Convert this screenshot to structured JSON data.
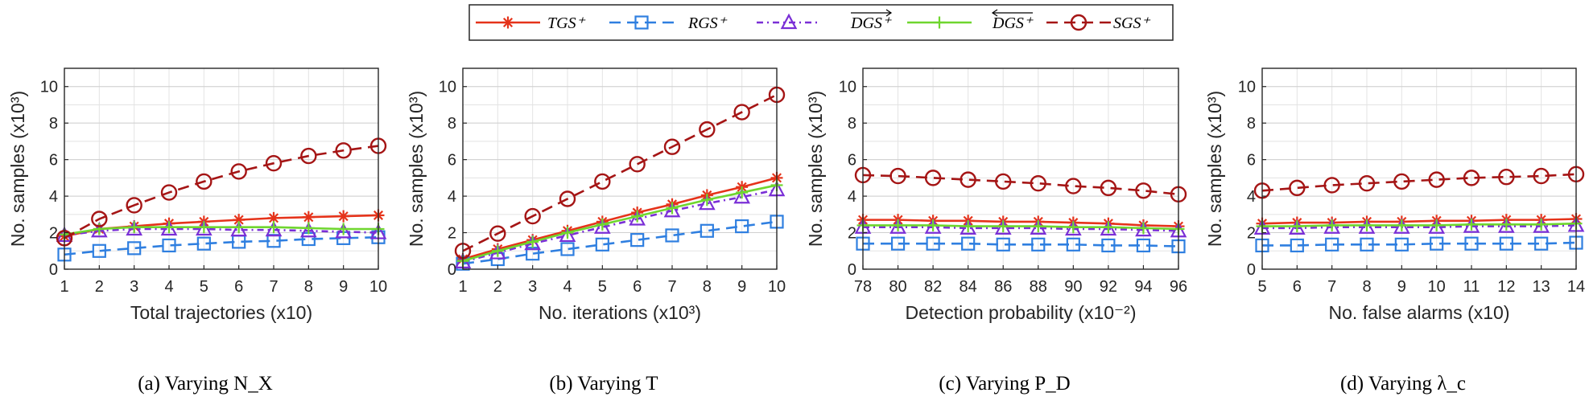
{
  "legend": [
    {
      "label": "TGS⁺",
      "color": "#e5331a",
      "dash": "",
      "marker": "star"
    },
    {
      "label": "RGS⁺",
      "color": "#2f7fe0",
      "dash": "14,8",
      "marker": "square"
    },
    {
      "label": "DGS⁺ (forward)",
      "color": "#7a2fd6",
      "dash": "8,5,2,5",
      "marker": "triangle"
    },
    {
      "label": "DGS⁺ (backward)",
      "color": "#6fd62f",
      "dash": "",
      "marker": "plus"
    },
    {
      "label": "SGS⁺",
      "color": "#a51515",
      "dash": "14,8",
      "marker": "circle"
    }
  ],
  "chart_data": [
    {
      "type": "line",
      "caption": "(a) Varying N_X",
      "xlabel": "Total trajectories (x10)",
      "ylabel": "No. samples (x10³)",
      "x": [
        1,
        2,
        3,
        4,
        5,
        6,
        7,
        8,
        9,
        10
      ],
      "xlim": [
        1,
        10
      ],
      "ylim": [
        0,
        11
      ],
      "yticks": [
        0,
        2,
        4,
        6,
        8,
        10
      ],
      "xticks": [
        "1",
        "2",
        "3",
        "4",
        "5",
        "6",
        "7",
        "8",
        "9",
        "10"
      ],
      "series": [
        {
          "name": "TGS⁺",
          "values": [
            1.8,
            2.2,
            2.35,
            2.5,
            2.6,
            2.7,
            2.8,
            2.85,
            2.9,
            2.95
          ]
        },
        {
          "name": "RGS⁺",
          "values": [
            0.8,
            1.0,
            1.15,
            1.3,
            1.4,
            1.5,
            1.55,
            1.65,
            1.7,
            1.75
          ]
        },
        {
          "name": "DGS⁺ (forward)",
          "values": [
            1.85,
            2.1,
            2.2,
            2.2,
            2.2,
            2.15,
            2.15,
            2.1,
            2.05,
            2.0
          ]
        },
        {
          "name": "DGS⁺ (backward)",
          "values": [
            1.9,
            2.2,
            2.3,
            2.3,
            2.3,
            2.3,
            2.3,
            2.25,
            2.2,
            2.2
          ]
        },
        {
          "name": "SGS⁺",
          "values": [
            1.7,
            2.75,
            3.5,
            4.2,
            4.8,
            5.35,
            5.8,
            6.2,
            6.5,
            6.75
          ]
        }
      ]
    },
    {
      "type": "line",
      "caption": "(b) Varying T",
      "xlabel": "No. iterations (x10³)",
      "ylabel": "No. samples (x10³)",
      "x": [
        1,
        2,
        3,
        4,
        5,
        6,
        7,
        8,
        9,
        10
      ],
      "xlim": [
        1,
        10
      ],
      "ylim": [
        0,
        11
      ],
      "yticks": [
        0,
        2,
        4,
        6,
        8,
        10
      ],
      "xticks": [
        "1",
        "2",
        "3",
        "4",
        "5",
        "6",
        "7",
        "8",
        "9",
        "10"
      ],
      "series": [
        {
          "name": "TGS⁺",
          "values": [
            0.55,
            1.1,
            1.6,
            2.1,
            2.6,
            3.1,
            3.55,
            4.05,
            4.5,
            5.0
          ]
        },
        {
          "name": "RGS⁺",
          "values": [
            0.3,
            0.55,
            0.85,
            1.1,
            1.35,
            1.6,
            1.85,
            2.1,
            2.35,
            2.6
          ]
        },
        {
          "name": "DGS⁺ (forward)",
          "values": [
            0.4,
            0.9,
            1.4,
            1.85,
            2.3,
            2.75,
            3.2,
            3.6,
            3.95,
            4.35
          ]
        },
        {
          "name": "DGS⁺ (backward)",
          "values": [
            0.45,
            1.0,
            1.5,
            2.0,
            2.45,
            2.9,
            3.35,
            3.8,
            4.2,
            4.6
          ]
        },
        {
          "name": "SGS⁺",
          "values": [
            1.0,
            1.95,
            2.9,
            3.85,
            4.8,
            5.75,
            6.7,
            7.65,
            8.6,
            9.55
          ]
        }
      ]
    },
    {
      "type": "line",
      "caption": "(c) Varying P_D",
      "xlabel": "Detection probability (x10⁻²)",
      "ylabel": "No. samples (x10³)",
      "x": [
        78,
        80,
        82,
        84,
        86,
        88,
        90,
        92,
        94,
        96
      ],
      "xlim": [
        78,
        96
      ],
      "ylim": [
        0,
        11
      ],
      "yticks": [
        0,
        2,
        4,
        6,
        8,
        10
      ],
      "xticks": [
        "78",
        "80",
        "82",
        "84",
        "86",
        "88",
        "90",
        "92",
        "94",
        "96"
      ],
      "series": [
        {
          "name": "TGS⁺",
          "values": [
            2.7,
            2.7,
            2.65,
            2.65,
            2.6,
            2.6,
            2.55,
            2.5,
            2.4,
            2.35
          ]
        },
        {
          "name": "RGS⁺",
          "values": [
            1.4,
            1.4,
            1.4,
            1.4,
            1.35,
            1.35,
            1.35,
            1.3,
            1.3,
            1.25
          ]
        },
        {
          "name": "DGS⁺ (forward)",
          "values": [
            2.3,
            2.3,
            2.3,
            2.25,
            2.25,
            2.25,
            2.2,
            2.2,
            2.15,
            2.1
          ]
        },
        {
          "name": "DGS⁺ (backward)",
          "values": [
            2.4,
            2.4,
            2.4,
            2.35,
            2.35,
            2.35,
            2.3,
            2.3,
            2.25,
            2.2
          ]
        },
        {
          "name": "SGS⁺",
          "values": [
            5.15,
            5.1,
            5.0,
            4.9,
            4.8,
            4.7,
            4.55,
            4.45,
            4.3,
            4.1
          ]
        }
      ]
    },
    {
      "type": "line",
      "caption": "(d) Varying λ_c",
      "xlabel": "No. false alarms (x10)",
      "ylabel": "No. samples (x10³)",
      "x": [
        5,
        6,
        7,
        8,
        9,
        10,
        11,
        12,
        13,
        14
      ],
      "xlim": [
        5,
        14
      ],
      "ylim": [
        0,
        11
      ],
      "yticks": [
        0,
        2,
        4,
        6,
        8,
        10
      ],
      "xticks": [
        "5",
        "6",
        "7",
        "8",
        "9",
        "10",
        "11",
        "12",
        "13",
        "14"
      ],
      "series": [
        {
          "name": "TGS⁺",
          "values": [
            2.5,
            2.55,
            2.55,
            2.6,
            2.6,
            2.65,
            2.65,
            2.7,
            2.7,
            2.75
          ]
        },
        {
          "name": "RGS⁺",
          "values": [
            1.3,
            1.3,
            1.35,
            1.35,
            1.35,
            1.4,
            1.4,
            1.4,
            1.4,
            1.45
          ]
        },
        {
          "name": "DGS⁺ (forward)",
          "values": [
            2.25,
            2.25,
            2.3,
            2.3,
            2.3,
            2.3,
            2.35,
            2.35,
            2.35,
            2.4
          ]
        },
        {
          "name": "DGS⁺ (backward)",
          "values": [
            2.35,
            2.35,
            2.4,
            2.4,
            2.4,
            2.4,
            2.45,
            2.45,
            2.45,
            2.5
          ]
        },
        {
          "name": "SGS⁺",
          "values": [
            4.3,
            4.45,
            4.6,
            4.7,
            4.8,
            4.9,
            5.0,
            5.05,
            5.1,
            5.2
          ]
        }
      ]
    }
  ]
}
